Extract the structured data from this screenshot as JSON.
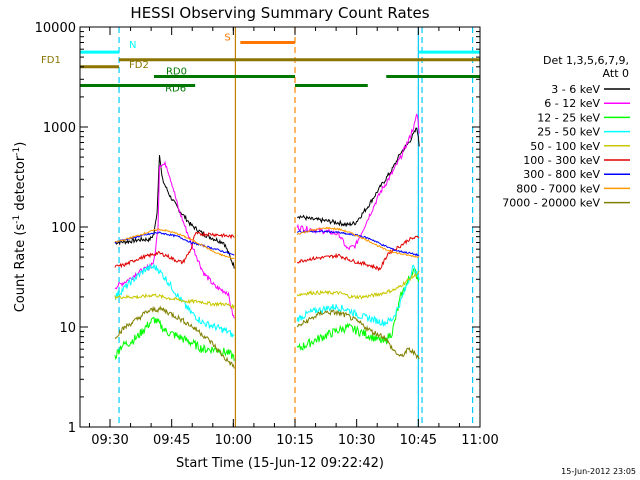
{
  "chart_data": {
    "type": "line",
    "title": "HESSI Observing Summary Count Rates",
    "xlabel": "Start Time (15-Jun-12 09:22:42)",
    "ylabel_prefix": "Count Rate (s",
    "ylabel_sup": "-1",
    "ylabel_mid": " detector",
    "ylabel_sup2": "-1",
    "ylabel_suffix": ")",
    "y_scale": "log",
    "ylim": [
      1,
      10000
    ],
    "x_unit": "minutes after 09:22:42",
    "xlim": [
      0,
      97.3
    ],
    "x_ticks": [
      {
        "label": "09:30",
        "x": 7.3
      },
      {
        "label": "09:45",
        "x": 22.3
      },
      {
        "label": "10:00",
        "x": 37.3
      },
      {
        "label": "10:15",
        "x": 52.3
      },
      {
        "label": "10:30",
        "x": 67.3
      },
      {
        "label": "10:45",
        "x": 82.3
      },
      {
        "label": "11:00",
        "x": 97.3
      }
    ],
    "y_ticks": [
      {
        "label": "1",
        "v": 1
      },
      {
        "label": "10",
        "v": 10
      },
      {
        "label": "100",
        "v": 100
      },
      {
        "label": "1000",
        "v": 1000
      },
      {
        "label": "10000",
        "v": 10000
      }
    ],
    "legend_title": [
      "Det 1,3,5,6,7,9,",
      "Att 0"
    ],
    "legend_position": "right",
    "series": [
      {
        "name": "3 - 6 keV",
        "color": "#000000"
      },
      {
        "name": "6 - 12 keV",
        "color": "#ff00ff"
      },
      {
        "name": "12 - 25 keV",
        "color": "#00ff00"
      },
      {
        "name": "25 - 50 keV",
        "color": "#00ffff"
      },
      {
        "name": "50 - 100 keV",
        "color": "#c8c800"
      },
      {
        "name": "100 - 300 keV",
        "color": "#e00000"
      },
      {
        "name": "300 - 800 keV",
        "color": "#0000ff"
      },
      {
        "name": "800 - 7000 keV",
        "color": "#ff9900"
      },
      {
        "name": "7000 - 20000 keV",
        "color": "#808000"
      }
    ],
    "flag_bars": [
      {
        "label": "N",
        "color": "#00ffff",
        "y": 5600,
        "segments": [
          [
            0,
            9.5
          ],
          [
            82.5,
            97.3
          ]
        ]
      },
      {
        "label": "S",
        "color": "#ff7700",
        "y": 7000,
        "segments": [
          [
            39,
            52.3
          ]
        ]
      },
      {
        "label": "FD1",
        "color": "#8b7500",
        "y": 4000,
        "segments": [
          [
            0,
            9.5
          ]
        ]
      },
      {
        "label": "FD2",
        "color": "#8b7500",
        "y": 4700,
        "segments": [
          [
            9.5,
            97.3
          ]
        ]
      },
      {
        "label": "RD0",
        "color": "#007700",
        "y": 3200,
        "segments": [
          [
            18,
            52.3
          ],
          [
            74.5,
            97.3
          ]
        ]
      },
      {
        "label": "RD6",
        "color": "#007700",
        "y": 2600,
        "segments": [
          [
            0,
            28
          ],
          [
            52.3,
            70
          ]
        ]
      }
    ],
    "vlines": [
      {
        "x": 9.5,
        "color": "#00ccff",
        "style": "dashed"
      },
      {
        "x": 37.8,
        "color": "#c08000",
        "style": "solid"
      },
      {
        "x": 52.3,
        "color": "#ff8800",
        "style": "dashed"
      },
      {
        "x": 82.3,
        "color": "#00ccff",
        "style": "solid"
      },
      {
        "x": 83.2,
        "color": "#00ccff",
        "style": "dashed"
      },
      {
        "x": 95.5,
        "color": "#00ccff",
        "style": "dashed"
      }
    ],
    "segments": [
      [
        8.5,
        37.5
      ],
      [
        52.8,
        82.5
      ]
    ],
    "profiles": [
      [
        [
          8.5,
          70
        ],
        [
          12,
          72
        ],
        [
          15,
          75
        ],
        [
          17,
          75
        ],
        [
          18,
          85
        ],
        [
          18.8,
          150
        ],
        [
          19.3,
          560
        ],
        [
          20,
          300
        ],
        [
          22,
          200
        ],
        [
          24,
          150
        ],
        [
          27,
          105
        ],
        [
          30,
          85
        ],
        [
          33,
          75
        ],
        [
          35,
          70
        ],
        [
          37,
          45
        ],
        [
          37.5,
          40
        ]
      ],
      [
        [
          8.5,
          25
        ],
        [
          12,
          30
        ],
        [
          14,
          35
        ],
        [
          16,
          38
        ],
        [
          18,
          45
        ],
        [
          19,
          100
        ],
        [
          19.3,
          420
        ],
        [
          21,
          420
        ],
        [
          22.5,
          260
        ],
        [
          24,
          150
        ],
        [
          27,
          70
        ],
        [
          30,
          35
        ],
        [
          33,
          25
        ],
        [
          36,
          22
        ],
        [
          37,
          14
        ],
        [
          37.5,
          12
        ]
      ],
      [
        [
          8.5,
          5
        ],
        [
          10,
          6.5
        ],
        [
          12,
          7
        ],
        [
          14,
          8
        ],
        [
          15,
          9
        ],
        [
          16,
          10
        ],
        [
          18,
          12
        ],
        [
          19,
          11
        ],
        [
          21,
          9
        ],
        [
          24,
          8
        ],
        [
          27,
          7
        ],
        [
          30,
          6
        ],
        [
          33,
          6
        ],
        [
          36,
          5.5
        ],
        [
          37.5,
          5
        ]
      ],
      [
        [
          8.5,
          20
        ],
        [
          11,
          25
        ],
        [
          13,
          30
        ],
        [
          15,
          35
        ],
        [
          16,
          38
        ],
        [
          18,
          40
        ],
        [
          19,
          38
        ],
        [
          21,
          30
        ],
        [
          24,
          20
        ],
        [
          27,
          14
        ],
        [
          30,
          11
        ],
        [
          33,
          10
        ],
        [
          36,
          9
        ],
        [
          37.5,
          8
        ]
      ],
      [
        [
          8.5,
          20
        ],
        [
          12,
          20
        ],
        [
          15,
          20
        ],
        [
          18,
          21
        ],
        [
          20,
          20
        ],
        [
          23,
          19
        ],
        [
          26,
          18
        ],
        [
          29,
          18
        ],
        [
          32,
          17
        ],
        [
          35,
          17
        ],
        [
          37.5,
          16
        ]
      ],
      [
        [
          8.5,
          40
        ],
        [
          11,
          42
        ],
        [
          14,
          48
        ],
        [
          17,
          52
        ],
        [
          19,
          55
        ],
        [
          21,
          52
        ],
        [
          23,
          47
        ],
        [
          25,
          44
        ],
        [
          27,
          60
        ],
        [
          28,
          85
        ],
        [
          32,
          85
        ],
        [
          35,
          82
        ],
        [
          37.5,
          80
        ]
      ],
      [
        [
          8.5,
          70
        ],
        [
          11,
          75
        ],
        [
          14,
          80
        ],
        [
          17,
          85
        ],
        [
          19,
          88
        ],
        [
          21,
          85
        ],
        [
          24,
          80
        ],
        [
          27,
          70
        ],
        [
          30,
          65
        ],
        [
          33,
          60
        ],
        [
          36,
          55
        ],
        [
          37.5,
          52
        ]
      ],
      [
        [
          8.5,
          70
        ],
        [
          11,
          75
        ],
        [
          14,
          82
        ],
        [
          17,
          90
        ],
        [
          19,
          95
        ],
        [
          21,
          92
        ],
        [
          24,
          85
        ],
        [
          27,
          75
        ],
        [
          30,
          65
        ],
        [
          33,
          55
        ],
        [
          36,
          50
        ],
        [
          37.5,
          48
        ]
      ],
      [
        [
          8.5,
          8
        ],
        [
          11,
          10
        ],
        [
          14,
          12
        ],
        [
          16,
          14
        ],
        [
          18,
          15
        ],
        [
          20,
          15
        ],
        [
          23,
          13
        ],
        [
          26,
          11
        ],
        [
          29,
          9
        ],
        [
          32,
          7
        ],
        [
          35,
          5
        ],
        [
          37.5,
          4
        ]
      ]
    ],
    "profiles2": [
      [
        [
          52.8,
          130
        ],
        [
          56,
          120
        ],
        [
          60,
          115
        ],
        [
          63,
          110
        ],
        [
          65,
          105
        ],
        [
          67,
          110
        ],
        [
          70,
          160
        ],
        [
          73,
          250
        ],
        [
          76,
          380
        ],
        [
          78,
          550
        ],
        [
          80,
          700
        ],
        [
          81.5,
          900
        ],
        [
          82,
          1000
        ],
        [
          82.5,
          650
        ]
      ],
      [
        [
          52.8,
          100
        ],
        [
          56,
          95
        ],
        [
          60,
          90
        ],
        [
          63,
          85
        ],
        [
          65,
          60
        ],
        [
          67,
          65
        ],
        [
          70,
          120
        ],
        [
          73,
          220
        ],
        [
          76,
          350
        ],
        [
          78,
          500
        ],
        [
          80,
          750
        ],
        [
          81.5,
          1100
        ],
        [
          82,
          1400
        ],
        [
          82.5,
          900
        ]
      ],
      [
        [
          52.8,
          6
        ],
        [
          56,
          7
        ],
        [
          59,
          8
        ],
        [
          62,
          9
        ],
        [
          65,
          10
        ],
        [
          68,
          9
        ],
        [
          71,
          8
        ],
        [
          74,
          7
        ],
        [
          76,
          9
        ],
        [
          78,
          20
        ],
        [
          80,
          30
        ],
        [
          81,
          38
        ],
        [
          82.5,
          30
        ]
      ],
      [
        [
          52.8,
          12
        ],
        [
          56,
          14
        ],
        [
          59,
          15
        ],
        [
          62,
          16
        ],
        [
          65,
          15
        ],
        [
          68,
          13
        ],
        [
          71,
          12
        ],
        [
          74,
          11
        ],
        [
          76,
          12
        ],
        [
          78,
          18
        ],
        [
          80,
          30
        ],
        [
          81,
          40
        ],
        [
          82.5,
          30
        ]
      ],
      [
        [
          52.8,
          21
        ],
        [
          56,
          22
        ],
        [
          60,
          22
        ],
        [
          63,
          22
        ],
        [
          66,
          20
        ],
        [
          69,
          20
        ],
        [
          72,
          21
        ],
        [
          74,
          22
        ],
        [
          77,
          24
        ],
        [
          80,
          30
        ],
        [
          82.5,
          35
        ]
      ],
      [
        [
          52.8,
          45
        ],
        [
          56,
          48
        ],
        [
          60,
          50
        ],
        [
          63,
          52
        ],
        [
          65,
          48
        ],
        [
          67,
          45
        ],
        [
          70,
          42
        ],
        [
          73,
          38
        ],
        [
          75,
          55
        ],
        [
          78,
          65
        ],
        [
          80,
          75
        ],
        [
          82.5,
          80
        ]
      ],
      [
        [
          52.8,
          90
        ],
        [
          56,
          90
        ],
        [
          60,
          90
        ],
        [
          63,
          88
        ],
        [
          65,
          85
        ],
        [
          68,
          82
        ],
        [
          71,
          75
        ],
        [
          74,
          65
        ],
        [
          77,
          58
        ],
        [
          80,
          55
        ],
        [
          82.5,
          52
        ]
      ],
      [
        [
          52.8,
          85
        ],
        [
          56,
          92
        ],
        [
          60,
          98
        ],
        [
          63,
          95
        ],
        [
          65,
          90
        ],
        [
          68,
          80
        ],
        [
          71,
          70
        ],
        [
          74,
          60
        ],
        [
          77,
          55
        ],
        [
          80,
          52
        ],
        [
          82.5,
          50
        ]
      ],
      [
        [
          52.8,
          10
        ],
        [
          56,
          12
        ],
        [
          59,
          14
        ],
        [
          62,
          14
        ],
        [
          65,
          13
        ],
        [
          68,
          11
        ],
        [
          71,
          9
        ],
        [
          74,
          8
        ],
        [
          76,
          6
        ],
        [
          78,
          5
        ],
        [
          80,
          6
        ],
        [
          82.5,
          5
        ]
      ]
    ],
    "date_stamp": "15-Jun-2012 23:05"
  }
}
